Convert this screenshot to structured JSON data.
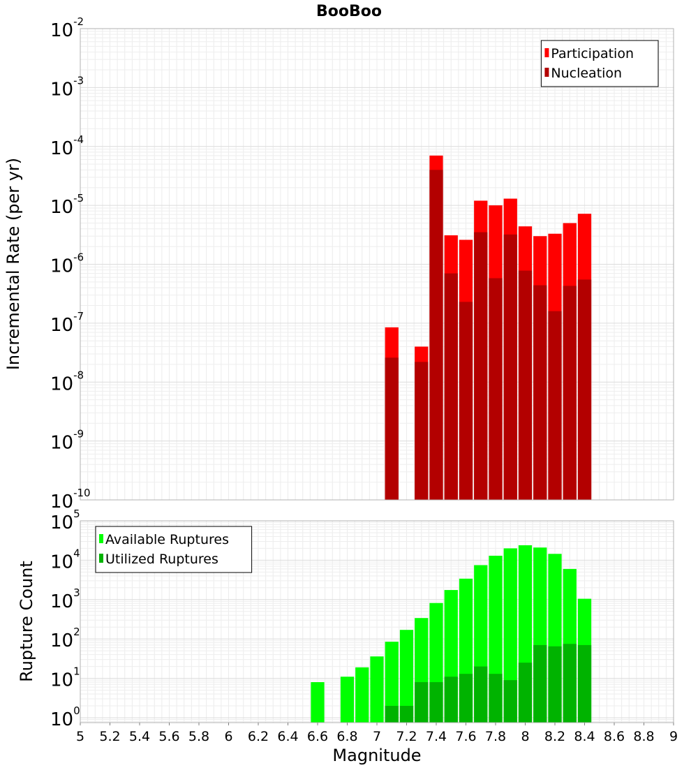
{
  "chart_data": [
    {
      "type": "bar",
      "title": "BooBoo",
      "ylabel": "Incremental Rate (per yr)",
      "yscale": "log",
      "ylim": [
        1e-10,
        0.01
      ],
      "xlim": [
        5,
        9
      ],
      "bar_width": 0.1,
      "grid": true,
      "legend_position": "top-right",
      "series": [
        {
          "name": "Participation",
          "color": "#ff0000",
          "x": [
            7.1,
            7.3,
            7.4,
            7.5,
            7.6,
            7.7,
            7.8,
            7.9,
            8.0,
            8.1,
            8.2,
            8.3,
            8.4
          ],
          "values": [
            8.5e-08,
            4e-08,
            7e-05,
            3.1e-06,
            2.6e-06,
            1.2e-05,
            1e-05,
            1.3e-05,
            4.4e-06,
            3e-06,
            3.3e-06,
            5e-06,
            7.2e-06
          ]
        },
        {
          "name": "Nucleation",
          "color": "#b30000",
          "x": [
            7.1,
            7.3,
            7.4,
            7.5,
            7.6,
            7.7,
            7.8,
            7.9,
            8.0,
            8.1,
            8.2,
            8.3,
            8.4
          ],
          "values": [
            2.6e-08,
            2.2e-08,
            4e-05,
            7e-07,
            2.3e-07,
            3.5e-06,
            5.8e-07,
            3.2e-06,
            7.8e-07,
            4.4e-07,
            1.6e-07,
            4.3e-07,
            5.5e-07
          ]
        }
      ]
    },
    {
      "type": "bar",
      "xlabel": "Magnitude",
      "ylabel": "Rupture Count",
      "yscale": "log",
      "ylim": [
        0.75,
        100000.0
      ],
      "xlim": [
        5,
        9
      ],
      "bar_width": 0.1,
      "grid": true,
      "legend_position": "top-left",
      "xticks": [
        "5",
        "5.2",
        "5.4",
        "5.6",
        "5.8",
        "6",
        "6.2",
        "6.4",
        "6.6",
        "6.8",
        "7",
        "7.2",
        "7.4",
        "7.6",
        "7.8",
        "8",
        "8.2",
        "8.4",
        "8.6",
        "8.8",
        "9"
      ],
      "series": [
        {
          "name": "Available Ruptures",
          "color": "#00ff00",
          "x": [
            6.6,
            6.8,
            6.9,
            7.0,
            7.1,
            7.2,
            7.3,
            7.4,
            7.5,
            7.6,
            7.7,
            7.8,
            7.9,
            8.0,
            8.1,
            8.2,
            8.3,
            8.4
          ],
          "values": [
            8,
            11,
            19,
            36,
            85,
            170,
            340,
            820,
            1750,
            3400,
            7500,
            13000,
            20000,
            24000,
            21000,
            14500,
            6000,
            1050
          ]
        },
        {
          "name": "Utilized Ruptures",
          "color": "#00b300",
          "x": [
            7.1,
            7.2,
            7.3,
            7.4,
            7.5,
            7.6,
            7.7,
            7.8,
            7.9,
            8.0,
            8.1,
            8.2,
            8.3,
            8.4
          ],
          "values": [
            2,
            2,
            8,
            8,
            11,
            13,
            20,
            13,
            9,
            25,
            70,
            65,
            75,
            70
          ]
        }
      ]
    }
  ]
}
